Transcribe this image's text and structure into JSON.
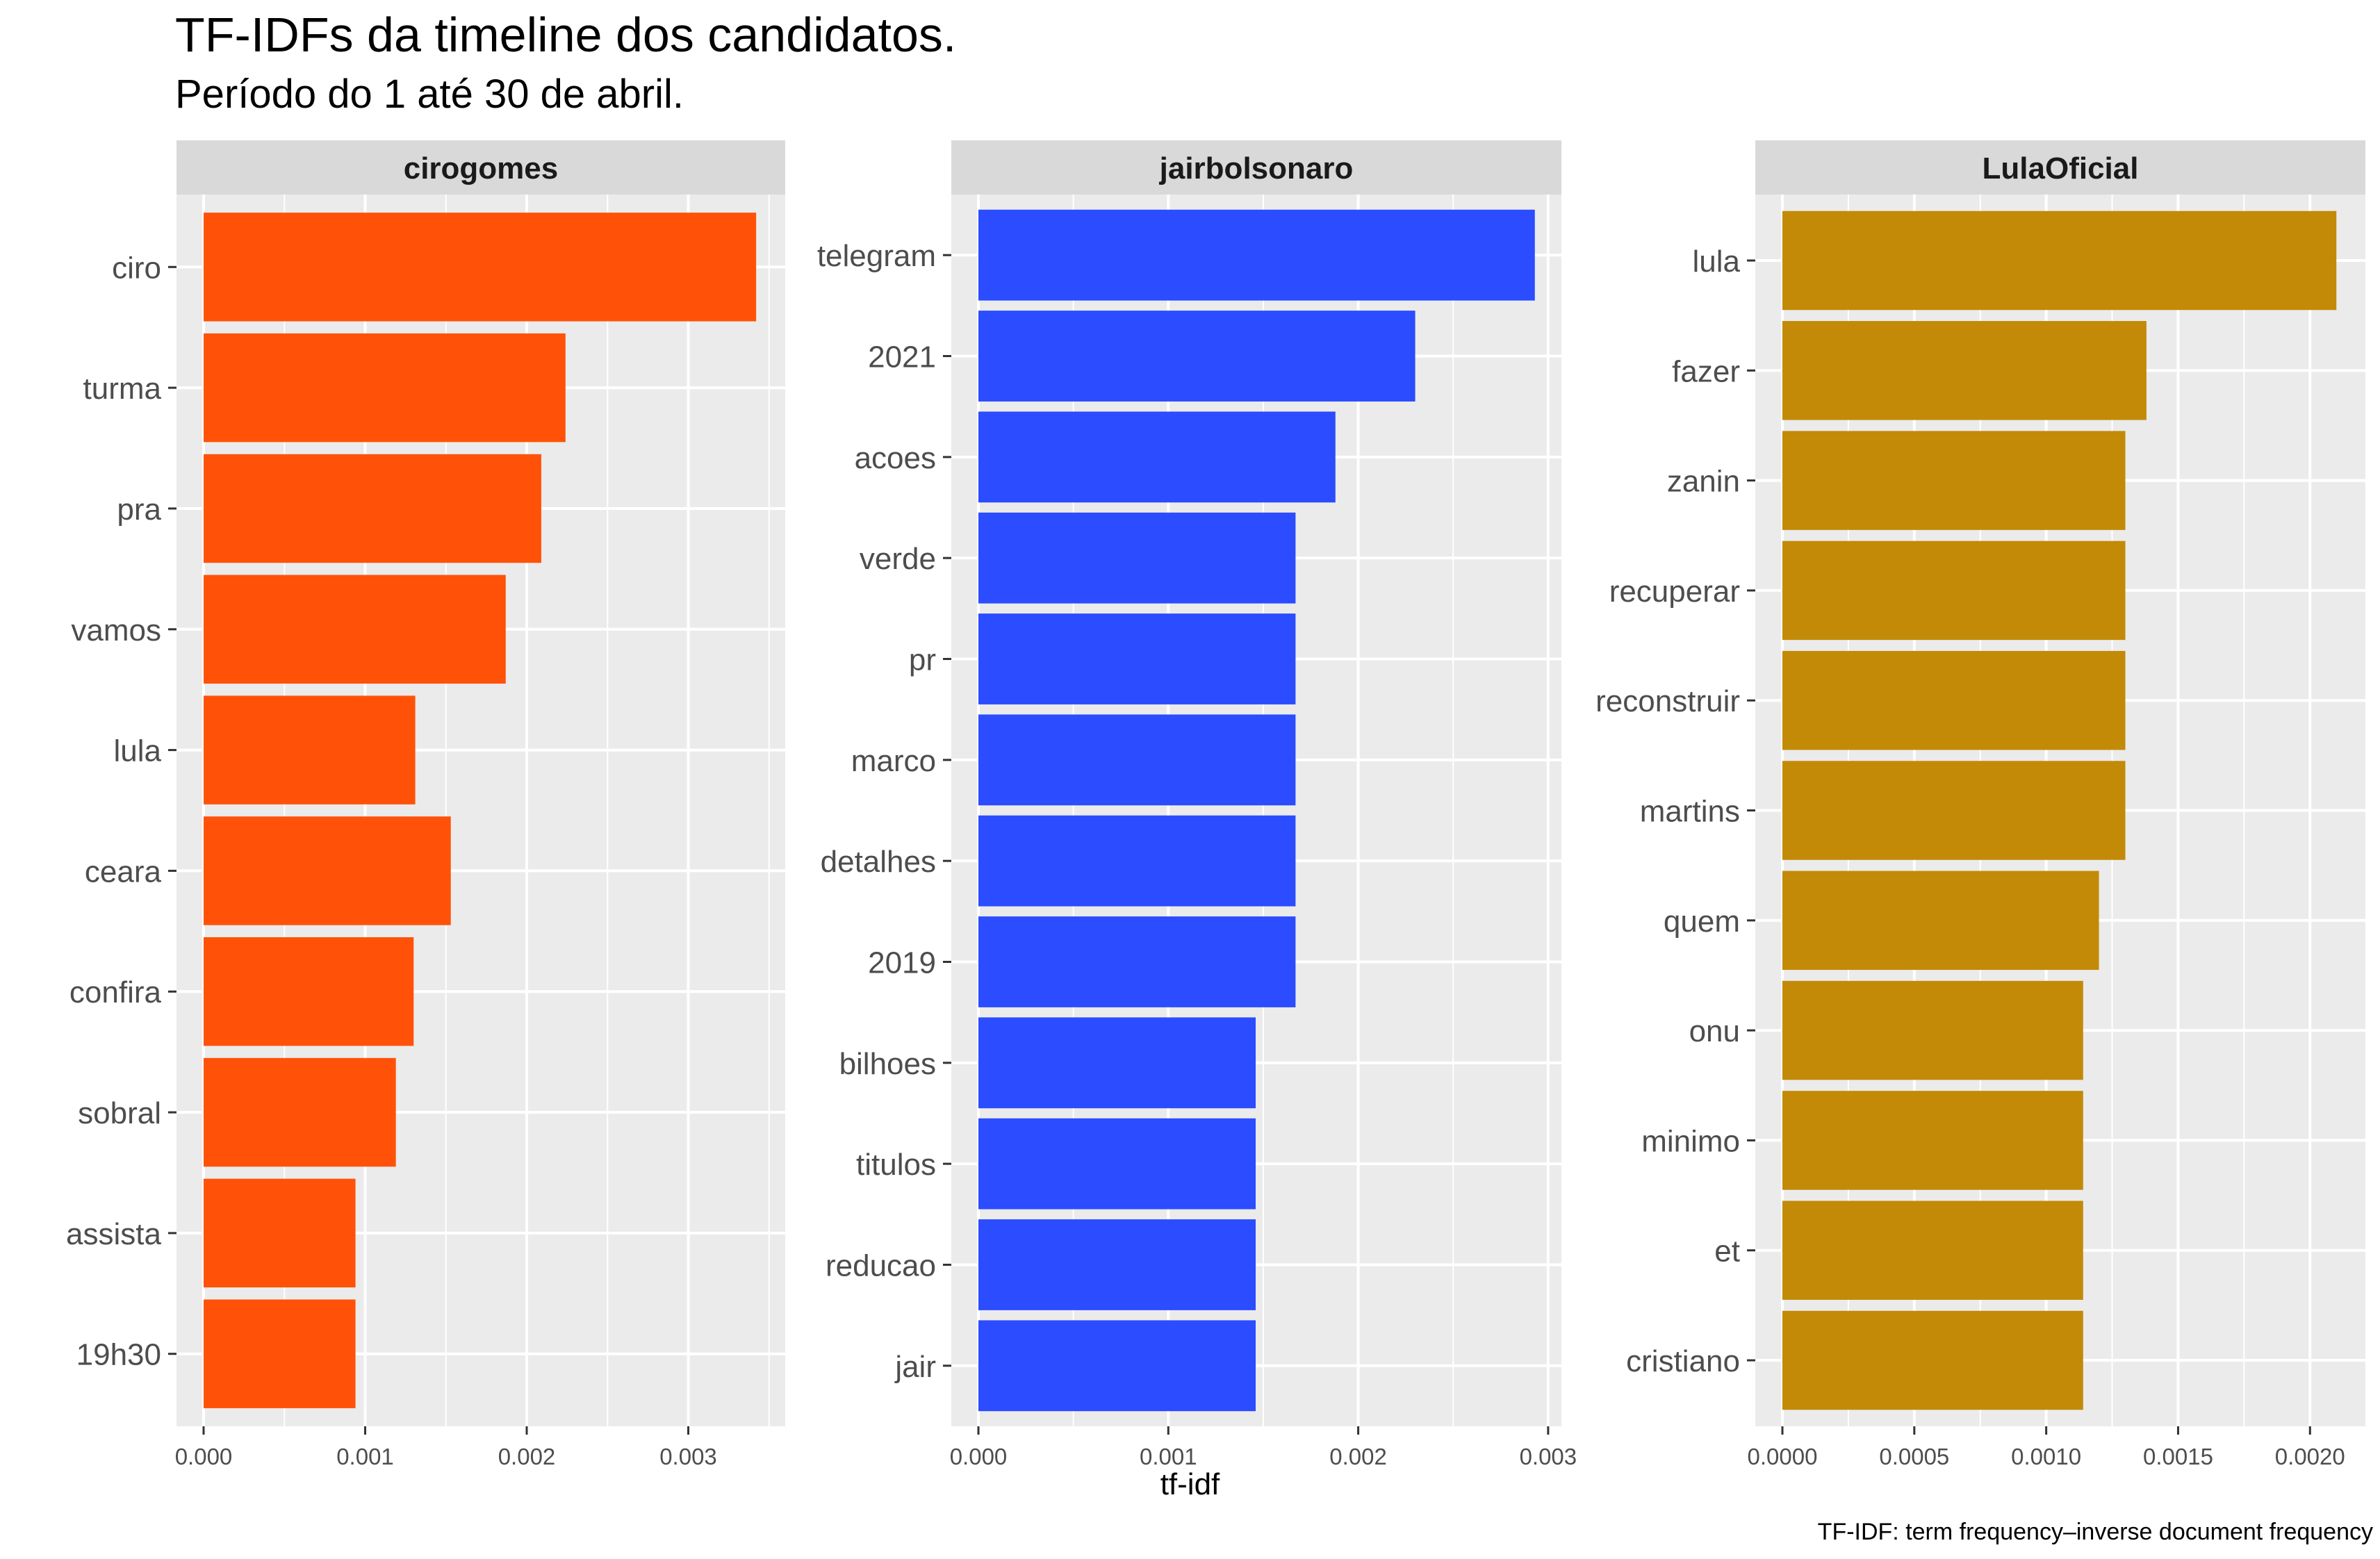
{
  "title": "TF-IDFs da timeline dos candidatos.",
  "subtitle": "Período do 1 até 30 de abril.",
  "caption": "TF-IDF: term frequency–inverse document frequency",
  "chart_data": {
    "type": "bar",
    "orientation": "horizontal",
    "xlabel": "tf-idf",
    "grid": true,
    "panels": [
      {
        "name": "cirogomes",
        "color": "#FF5208",
        "xlim": [
          0,
          0.0036
        ],
        "ticks": [
          0,
          0.001,
          0.002,
          0.003
        ],
        "tick_labels": [
          "0.000",
          "0.001",
          "0.002",
          "0.003"
        ],
        "categories": [
          "ciro",
          "turma",
          "pra",
          "vamos",
          "lula",
          "ceara",
          "confira",
          "sobral",
          "assista",
          "19h30"
        ],
        "values": [
          0.00342,
          0.00224,
          0.00209,
          0.00187,
          0.00131,
          0.00153,
          0.0013,
          0.00119,
          0.00094,
          0.00094
        ]
      },
      {
        "name": "jairbolsonaro",
        "color": "#2B4CFF",
        "xlim": [
          0,
          0.00307
        ],
        "ticks": [
          0,
          0.001,
          0.002,
          0.003
        ],
        "tick_labels": [
          "0.000",
          "0.001",
          "0.002",
          "0.003"
        ],
        "categories": [
          "telegram",
          "2021",
          "acoes",
          "verde",
          "pr",
          "marco",
          "detalhes",
          "2019",
          "bilhoes",
          "titulos",
          "reducao",
          "jair"
        ],
        "values": [
          0.00293,
          0.0023,
          0.00188,
          0.00167,
          0.00167,
          0.00167,
          0.00167,
          0.00167,
          0.00146,
          0.00146,
          0.00146,
          0.00146
        ]
      },
      {
        "name": "LulaOficial",
        "color": "#C28A06",
        "xlim": [
          0,
          0.00221
        ],
        "ticks": [
          0,
          0.0005,
          0.001,
          0.0015,
          0.002
        ],
        "tick_labels": [
          "0.0000",
          "0.0005",
          "0.0010",
          "0.0015",
          "0.0020"
        ],
        "categories": [
          "lula",
          "fazer",
          "zanin",
          "recuperar",
          "reconstruir",
          "martins",
          "quem",
          "onu",
          "minimo",
          "et",
          "cristiano"
        ],
        "values": [
          0.0021,
          0.00138,
          0.0013,
          0.0013,
          0.0013,
          0.0013,
          0.0012,
          0.00114,
          0.00114,
          0.00114,
          0.00114
        ]
      }
    ]
  }
}
